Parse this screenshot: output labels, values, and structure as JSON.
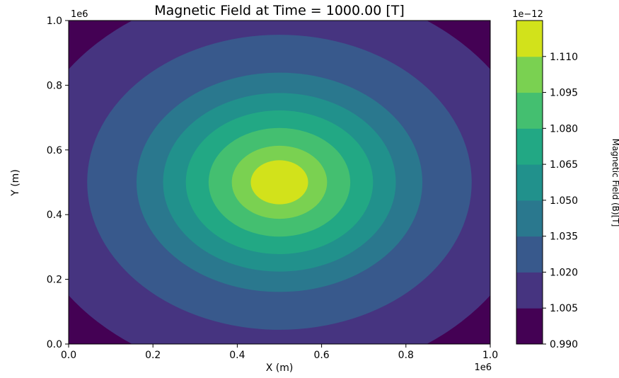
{
  "chart_data": {
    "type": "heatmap",
    "subtype": "filled-contour",
    "title": "Magnetic Field at Time = 1000.00 [T]",
    "xlabel": "X (m)",
    "ylabel": "Y (m)",
    "x_offset_label": "1e6",
    "y_offset_label": "1e6",
    "xlim": [
      0.0,
      1.0
    ],
    "ylim": [
      0.0,
      1.0
    ],
    "xticks": [
      "0.0",
      "0.2",
      "0.4",
      "0.6",
      "0.8",
      "1.0"
    ],
    "yticks": [
      "0.0",
      "0.2",
      "0.4",
      "0.6",
      "0.8",
      "1.0"
    ],
    "center": [
      0.5,
      0.5
    ],
    "field_model": "radially symmetric maximum at domain center",
    "levels": [
      0.99,
      1.005,
      1.02,
      1.035,
      1.05,
      1.065,
      1.08,
      1.095,
      1.11
    ],
    "level_radii": [
      0.61,
      0.456,
      0.339,
      0.276,
      0.222,
      0.168,
      0.113,
      0.068
    ],
    "colors": [
      "#440154",
      "#463480",
      "#38598c",
      "#2a788e",
      "#21918c",
      "#22a884",
      "#44bf70",
      "#7ad151",
      "#d2e21b"
    ],
    "colorbar": {
      "label": "Magnetic Field (B)[T]",
      "offset_label": "1e−12",
      "ticks": [
        "0.990",
        "1.005",
        "1.020",
        "1.035",
        "1.050",
        "1.065",
        "1.080",
        "1.095",
        "1.110"
      ]
    },
    "grid": false
  }
}
